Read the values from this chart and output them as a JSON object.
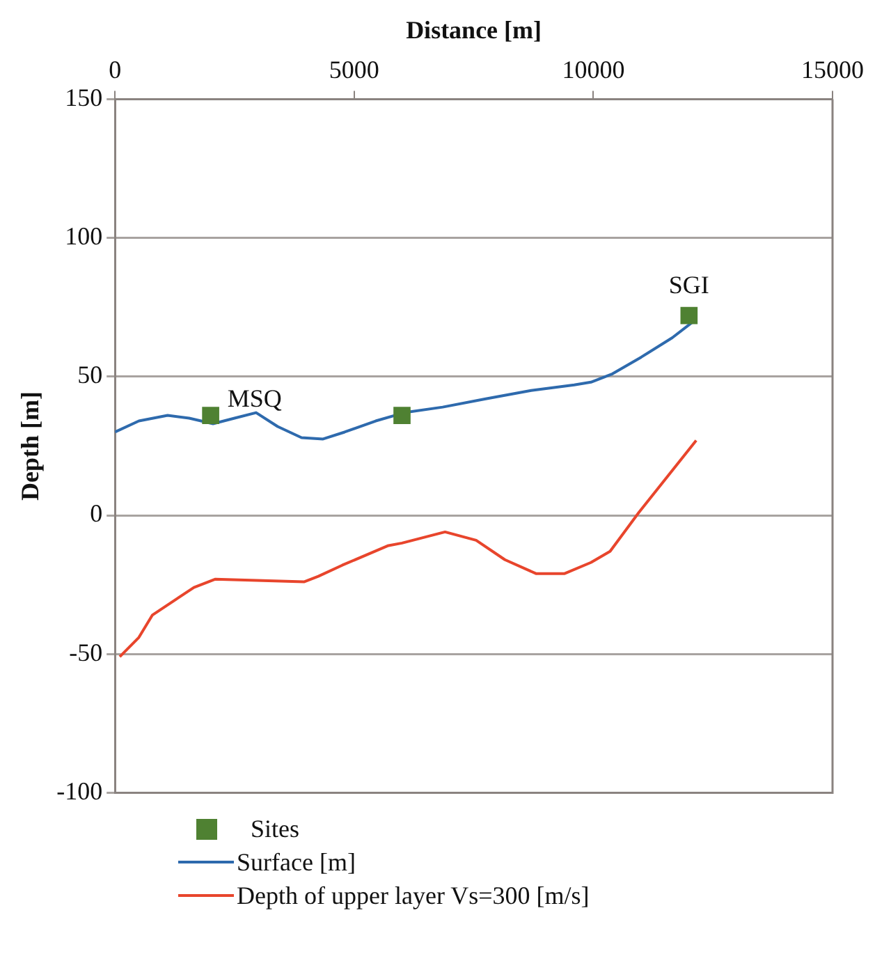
{
  "chart_data": {
    "type": "line",
    "xlabel": "Distance [m]",
    "ylabel": "Depth [m]",
    "xlim": [
      0,
      15000
    ],
    "xticks": [
      0,
      5000,
      10000,
      15000
    ],
    "ylim": [
      -100,
      150
    ],
    "yticks": [
      -100,
      -50,
      0,
      50,
      100,
      150
    ],
    "grid": "y",
    "legend": "bottom left",
    "line_style": "solid",
    "series": [
      {
        "name": "Sites",
        "type": "scatter",
        "marker": "square",
        "color": "#4f8132",
        "x": [
          2000,
          6000,
          12000
        ],
        "values": [
          36,
          36,
          72
        ]
      },
      {
        "name": "Surface [m]",
        "type": "line",
        "marker": "none",
        "color": "#2e6aad",
        "x": [
          0,
          500,
          1100,
          1550,
          2050,
          2500,
          2950,
          3400,
          3900,
          4350,
          4800,
          5450,
          6050,
          6850,
          7750,
          8700,
          9600,
          9950,
          10400,
          11000,
          11650,
          12100
        ],
        "values": [
          30,
          34,
          36,
          35,
          33,
          35,
          37,
          32,
          28,
          27.5,
          30,
          34,
          37,
          39,
          42,
          45,
          47,
          48,
          51,
          57,
          64,
          70
        ]
      },
      {
        "name": "Depth of upper layer Vs=300 [m/s]",
        "type": "line",
        "marker": "none",
        "color": "#e8452c",
        "x": [
          100,
          500,
          780,
          1650,
          2100,
          3950,
          4250,
          4750,
          5700,
          6000,
          6900,
          7550,
          8150,
          8800,
          9400,
          9950,
          10350,
          10950,
          12150
        ],
        "values": [
          -51,
          -44,
          -36,
          -26,
          -23,
          -24,
          -22,
          -18,
          -11,
          -10,
          -6,
          -9,
          -16,
          -21,
          -21,
          -17,
          -13,
          1,
          27
        ]
      }
    ],
    "annotations": [
      {
        "text": "MSQ",
        "x": 2000,
        "y": 36
      },
      {
        "text": "SGI",
        "x": 12000,
        "y": 72
      }
    ]
  }
}
